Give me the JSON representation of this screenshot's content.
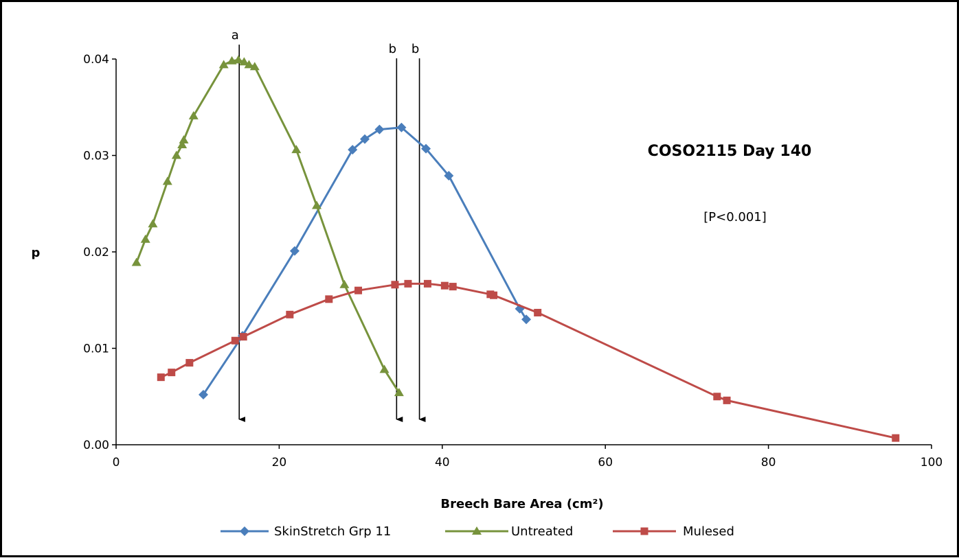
{
  "chart_data": {
    "type": "line",
    "title": "COSO2115 Day 140",
    "subtitle": "[P<0.001]",
    "xlabel": "Breech Bare Area (cm²)",
    "ylabel": "p",
    "xlim": [
      0,
      100
    ],
    "ylim": [
      0,
      0.04
    ],
    "x_ticks": [
      0,
      20,
      40,
      60,
      80,
      100
    ],
    "x_tick_labels": [
      "0",
      "20",
      "40",
      "60",
      "80",
      "100"
    ],
    "y_ticks": [
      0,
      0.01,
      0.02,
      0.03,
      0.04
    ],
    "y_tick_labels": [
      "0.00",
      "0.01",
      "0.02",
      "0.03",
      "0.04"
    ],
    "grid": false,
    "legend_position": "bottom",
    "series": [
      {
        "name": "SkinStretch Grp 11",
        "color": "#4a7ebb",
        "marker": "diamond",
        "points": [
          [
            10.7,
            0.0052
          ],
          [
            15.5,
            0.0113
          ],
          [
            21.9,
            0.0201
          ],
          [
            29.0,
            0.0306
          ],
          [
            30.5,
            0.0317
          ],
          [
            32.3,
            0.0327
          ],
          [
            35.0,
            0.0329
          ],
          [
            38.0,
            0.0307
          ],
          [
            40.8,
            0.0279
          ],
          [
            49.5,
            0.0141
          ],
          [
            50.3,
            0.013
          ]
        ]
      },
      {
        "name": "Untreated",
        "color": "#77933c",
        "marker": "triangle",
        "points": [
          [
            2.5,
            0.0189
          ],
          [
            3.6,
            0.0213
          ],
          [
            4.5,
            0.0229
          ],
          [
            6.3,
            0.0273
          ],
          [
            7.4,
            0.03
          ],
          [
            8.1,
            0.0311
          ],
          [
            8.3,
            0.0316
          ],
          [
            9.5,
            0.0341
          ],
          [
            13.2,
            0.0394
          ],
          [
            14.2,
            0.0398
          ],
          [
            15.0,
            0.0399
          ],
          [
            15.7,
            0.0397
          ],
          [
            16.3,
            0.0394
          ],
          [
            17.0,
            0.0392
          ],
          [
            22.1,
            0.0306
          ],
          [
            24.6,
            0.0248
          ],
          [
            28.0,
            0.0166
          ],
          [
            32.9,
            0.0078
          ],
          [
            34.7,
            0.0054
          ]
        ]
      },
      {
        "name": "Mulesed",
        "color": "#be4b48",
        "marker": "square",
        "points": [
          [
            5.5,
            0.007
          ],
          [
            6.8,
            0.0075
          ],
          [
            9.0,
            0.0085
          ],
          [
            14.6,
            0.0108
          ],
          [
            15.6,
            0.0112
          ],
          [
            21.3,
            0.0135
          ],
          [
            26.1,
            0.0151
          ],
          [
            29.7,
            0.016
          ],
          [
            34.2,
            0.0166
          ],
          [
            35.8,
            0.0167
          ],
          [
            38.2,
            0.0167
          ],
          [
            40.3,
            0.0165
          ],
          [
            41.3,
            0.0164
          ],
          [
            45.9,
            0.0156
          ],
          [
            46.3,
            0.0155
          ],
          [
            51.7,
            0.0137
          ],
          [
            73.7,
            0.005
          ],
          [
            74.9,
            0.0046
          ],
          [
            95.6,
            0.0007
          ]
        ]
      }
    ],
    "annotations": [
      {
        "label": "a",
        "x": 15.1
      },
      {
        "label": "b",
        "x": 34.4
      },
      {
        "label": "b",
        "x": 37.2
      }
    ]
  }
}
